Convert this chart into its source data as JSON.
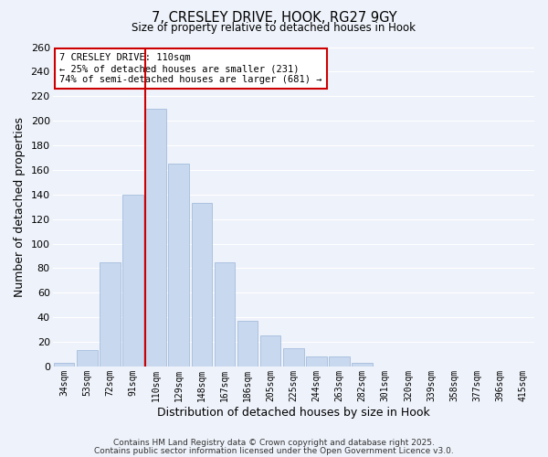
{
  "title": "7, CRESLEY DRIVE, HOOK, RG27 9GY",
  "subtitle": "Size of property relative to detached houses in Hook",
  "xlabel": "Distribution of detached houses by size in Hook",
  "ylabel": "Number of detached properties",
  "bar_color": "#c8d8ee",
  "bar_edgecolor": "#9ab5d8",
  "background_color": "#eef2fa",
  "grid_color": "#ffffff",
  "grid_minor_color": "#dce6f5",
  "categories": [
    "34sqm",
    "53sqm",
    "72sqm",
    "91sqm",
    "110sqm",
    "129sqm",
    "148sqm",
    "167sqm",
    "186sqm",
    "205sqm",
    "225sqm",
    "244sqm",
    "263sqm",
    "282sqm",
    "301sqm",
    "320sqm",
    "339sqm",
    "358sqm",
    "377sqm",
    "396sqm",
    "415sqm"
  ],
  "values": [
    3,
    13,
    85,
    140,
    210,
    165,
    133,
    85,
    37,
    25,
    15,
    8,
    8,
    3,
    0,
    0,
    0,
    0,
    0,
    0,
    0
  ],
  "vline_color": "#cc0000",
  "vline_index": 4,
  "annotation_title": "7 CRESLEY DRIVE: 110sqm",
  "annotation_line1": "← 25% of detached houses are smaller (231)",
  "annotation_line2": "74% of semi-detached houses are larger (681) →",
  "annotation_box_color": "#ffffff",
  "annotation_box_edgecolor": "#cc0000",
  "ylim": [
    0,
    260
  ],
  "yticks": [
    0,
    20,
    40,
    60,
    80,
    100,
    120,
    140,
    160,
    180,
    200,
    220,
    240,
    260
  ],
  "footer1": "Contains HM Land Registry data © Crown copyright and database right 2025.",
  "footer2": "Contains public sector information licensed under the Open Government Licence v3.0."
}
